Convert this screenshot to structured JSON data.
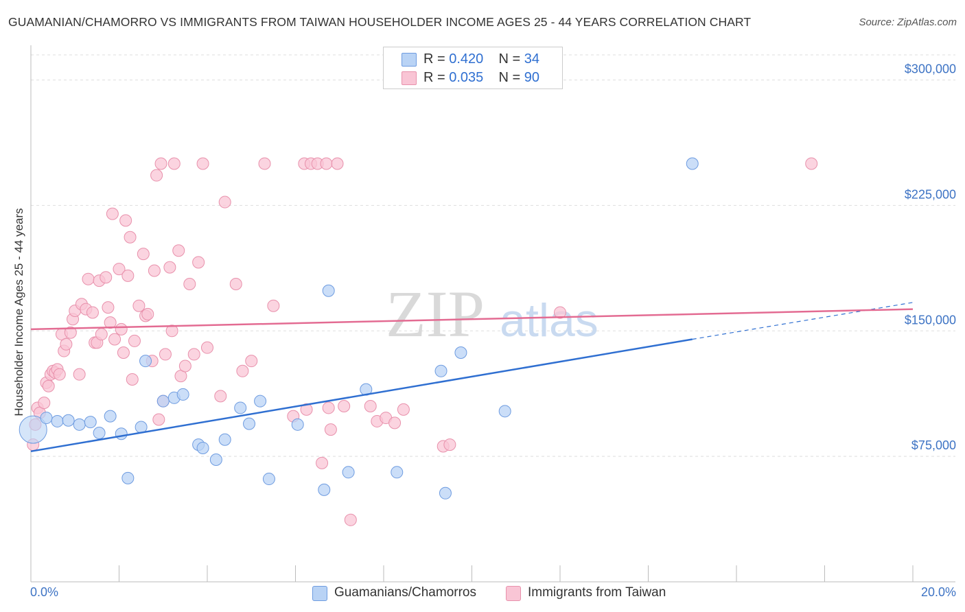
{
  "title": "GUAMANIAN/CHAMORRO VS IMMIGRANTS FROM TAIWAN HOUSEHOLDER INCOME AGES 25 - 44 YEARS CORRELATION CHART",
  "source": "Source: ZipAtlas.com",
  "watermark": {
    "zip": "ZIP",
    "atlas": "atlas"
  },
  "colors": {
    "blue_fill": "#b9d3f5",
    "blue_stroke": "#6d9be0",
    "blue_line": "#2f6fd1",
    "pink_fill": "#f9c5d5",
    "pink_stroke": "#e890ab",
    "pink_line": "#e36b92",
    "axis_text": "#3d73c4",
    "grid": "#dddddd"
  },
  "legend": {
    "r_label": "R =",
    "n_label": "N =",
    "series1": {
      "r": "0.420",
      "n": "34"
    },
    "series2": {
      "r": "0.035",
      "n": "90"
    }
  },
  "bottom_legend": {
    "series1": "Guamanians/Chamorros",
    "series2": "Immigrants from Taiwan"
  },
  "chart_data": {
    "type": "scatter",
    "title": "GUAMANIAN/CHAMORRO VS IMMIGRANTS FROM TAIWAN HOUSEHOLDER INCOME AGES 25 - 44 YEARS CORRELATION CHART",
    "xlabel": "",
    "ylabel": "Householder Income Ages 25 - 44 years",
    "xlim": [
      0,
      20
    ],
    "ylim": [
      0,
      315000
    ],
    "x_tick_labels": [
      "0.0%",
      "20.0%"
    ],
    "y_ticks": [
      75000,
      150000,
      225000,
      300000
    ],
    "y_tick_labels": [
      "$75,000",
      "$150,000",
      "$225,000",
      "$300,000"
    ],
    "series": [
      {
        "name": "Guamanians/Chamorros",
        "r": 0.42,
        "n": 34,
        "trend": {
          "x0": 0,
          "y0": 78000,
          "x1": 15,
          "y1": 145000,
          "x_dashed_end": 20,
          "y_dashed_end": 167000
        },
        "points": [
          [
            0.05,
            91000
          ],
          [
            0.35,
            98000
          ],
          [
            0.6,
            96000
          ],
          [
            0.85,
            96500
          ],
          [
            1.1,
            94000
          ],
          [
            1.35,
            95500
          ],
          [
            1.55,
            89000
          ],
          [
            1.8,
            99000
          ],
          [
            2.05,
            88500
          ],
          [
            2.2,
            62000
          ],
          [
            2.5,
            92500
          ],
          [
            2.6,
            132000
          ],
          [
            3.0,
            108000
          ],
          [
            3.25,
            110000
          ],
          [
            3.45,
            112000
          ],
          [
            3.8,
            82000
          ],
          [
            3.9,
            80000
          ],
          [
            4.2,
            73000
          ],
          [
            4.4,
            85000
          ],
          [
            4.75,
            104000
          ],
          [
            4.95,
            94500
          ],
          [
            5.2,
            108000
          ],
          [
            5.4,
            61500
          ],
          [
            6.05,
            94000
          ],
          [
            6.65,
            55000
          ],
          [
            6.75,
            174000
          ],
          [
            7.2,
            65500
          ],
          [
            7.6,
            115000
          ],
          [
            8.3,
            65500
          ],
          [
            9.3,
            126000
          ],
          [
            9.4,
            53000
          ],
          [
            9.75,
            137000
          ],
          [
            10.75,
            102000
          ],
          [
            15.0,
            250000
          ]
        ]
      },
      {
        "name": "Immigrants from Taiwan",
        "r": 0.035,
        "n": 90,
        "trend": {
          "x0": 0,
          "y0": 151000,
          "x1": 20,
          "y1": 163000
        },
        "points": [
          [
            0.05,
            82000
          ],
          [
            0.1,
            94000
          ],
          [
            0.15,
            104000
          ],
          [
            0.2,
            101000
          ],
          [
            0.3,
            107000
          ],
          [
            0.35,
            119000
          ],
          [
            0.4,
            117000
          ],
          [
            0.45,
            124000
          ],
          [
            0.5,
            126000
          ],
          [
            0.55,
            125000
          ],
          [
            0.6,
            127000
          ],
          [
            0.65,
            124000
          ],
          [
            0.7,
            148000
          ],
          [
            0.75,
            138000
          ],
          [
            0.8,
            142000
          ],
          [
            0.9,
            149000
          ],
          [
            0.95,
            157000
          ],
          [
            1.0,
            162000
          ],
          [
            1.1,
            124000
          ],
          [
            1.15,
            166000
          ],
          [
            1.25,
            163000
          ],
          [
            1.3,
            181000
          ],
          [
            1.4,
            161000
          ],
          [
            1.45,
            143000
          ],
          [
            1.5,
            143000
          ],
          [
            1.55,
            180000
          ],
          [
            1.6,
            148000
          ],
          [
            1.7,
            182000
          ],
          [
            1.75,
            164000
          ],
          [
            1.8,
            155000
          ],
          [
            1.85,
            220000
          ],
          [
            1.9,
            145000
          ],
          [
            2.0,
            187000
          ],
          [
            2.05,
            151000
          ],
          [
            2.1,
            137000
          ],
          [
            2.15,
            216000
          ],
          [
            2.2,
            183000
          ],
          [
            2.25,
            206000
          ],
          [
            2.3,
            121000
          ],
          [
            2.35,
            144000
          ],
          [
            2.45,
            165000
          ],
          [
            2.55,
            196000
          ],
          [
            2.6,
            159000
          ],
          [
            2.65,
            160000
          ],
          [
            2.75,
            132000
          ],
          [
            2.8,
            186000
          ],
          [
            2.85,
            243000
          ],
          [
            2.9,
            97000
          ],
          [
            2.95,
            250000
          ],
          [
            3.0,
            108000
          ],
          [
            3.05,
            136000
          ],
          [
            3.15,
            188000
          ],
          [
            3.2,
            150000
          ],
          [
            3.25,
            250000
          ],
          [
            3.35,
            198000
          ],
          [
            3.4,
            123000
          ],
          [
            3.5,
            129000
          ],
          [
            3.6,
            178000
          ],
          [
            3.7,
            136000
          ],
          [
            3.8,
            191000
          ],
          [
            3.9,
            250000
          ],
          [
            4.0,
            140000
          ],
          [
            4.3,
            111000
          ],
          [
            4.4,
            227000
          ],
          [
            4.65,
            178000
          ],
          [
            4.8,
            126000
          ],
          [
            5.0,
            132000
          ],
          [
            5.3,
            250000
          ],
          [
            5.5,
            165000
          ],
          [
            5.95,
            99000
          ],
          [
            6.2,
            250000
          ],
          [
            6.25,
            103000
          ],
          [
            6.35,
            250000
          ],
          [
            6.5,
            250000
          ],
          [
            6.6,
            71000
          ],
          [
            6.7,
            250000
          ],
          [
            6.75,
            104000
          ],
          [
            6.8,
            91000
          ],
          [
            6.95,
            250000
          ],
          [
            7.1,
            105000
          ],
          [
            7.25,
            37000
          ],
          [
            7.7,
            105000
          ],
          [
            7.85,
            96000
          ],
          [
            8.05,
            98000
          ],
          [
            8.25,
            95000
          ],
          [
            8.45,
            103000
          ],
          [
            9.35,
            81000
          ],
          [
            9.5,
            82000
          ],
          [
            12.0,
            161000
          ],
          [
            17.7,
            250000
          ]
        ]
      }
    ]
  }
}
